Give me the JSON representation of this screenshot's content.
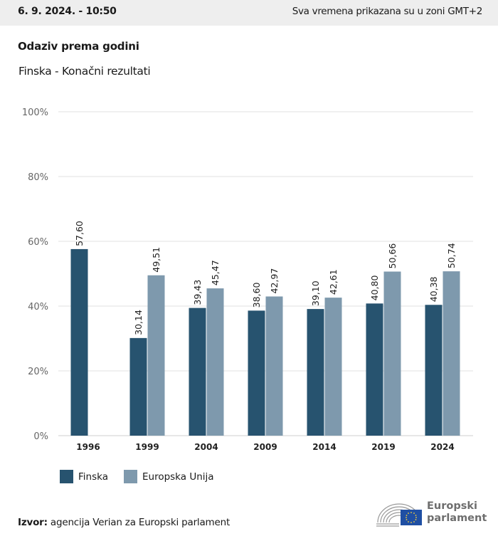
{
  "header": {
    "date": "6. 9. 2024. - 10:50",
    "timezone_note": "Sva vremena prikazana su u zoni GMT+2"
  },
  "title": "Odaziv prema godini",
  "subtitle": "Finska - Konačni rezultati",
  "colors": {
    "finska": "#27536f",
    "eu": "#7e99ad",
    "grid": "#e2e2e2",
    "topbar": "#eeeeee"
  },
  "chart_data": {
    "type": "bar",
    "title": "Odaziv prema godini",
    "subtitle": "Finska - Konačni rezultati",
    "xlabel": "",
    "ylabel": "",
    "categories": [
      "1996",
      "1999",
      "2004",
      "2009",
      "2014",
      "2019",
      "2024"
    ],
    "series": [
      {
        "name": "Finska",
        "values": [
          57.6,
          30.14,
          39.43,
          38.6,
          39.1,
          40.8,
          40.38
        ],
        "labels": [
          "57,60",
          "30,14",
          "39,43",
          "38,60",
          "39,10",
          "40,80",
          "40,38"
        ]
      },
      {
        "name": "Europska Unija",
        "values": [
          null,
          49.51,
          45.47,
          42.97,
          42.61,
          50.66,
          50.74
        ],
        "labels": [
          "",
          "49,51",
          "45,47",
          "42,97",
          "42,61",
          "50,66",
          "50,74"
        ]
      }
    ],
    "ylim": [
      0,
      100
    ],
    "yticks": [
      0,
      20,
      40,
      60,
      80,
      100
    ],
    "ytick_labels": [
      "0%",
      "20%",
      "40%",
      "60%",
      "80%",
      "100%"
    ],
    "grid": true,
    "legend": "bottom-left"
  },
  "legend": {
    "items": [
      {
        "label": "Finska"
      },
      {
        "label": "Europska Unija"
      }
    ]
  },
  "footer": {
    "source_label": "Izvor:",
    "source_text": " agencija Verian za Europski parlament",
    "logo_line1": "Europski",
    "logo_line2": "parlament"
  }
}
